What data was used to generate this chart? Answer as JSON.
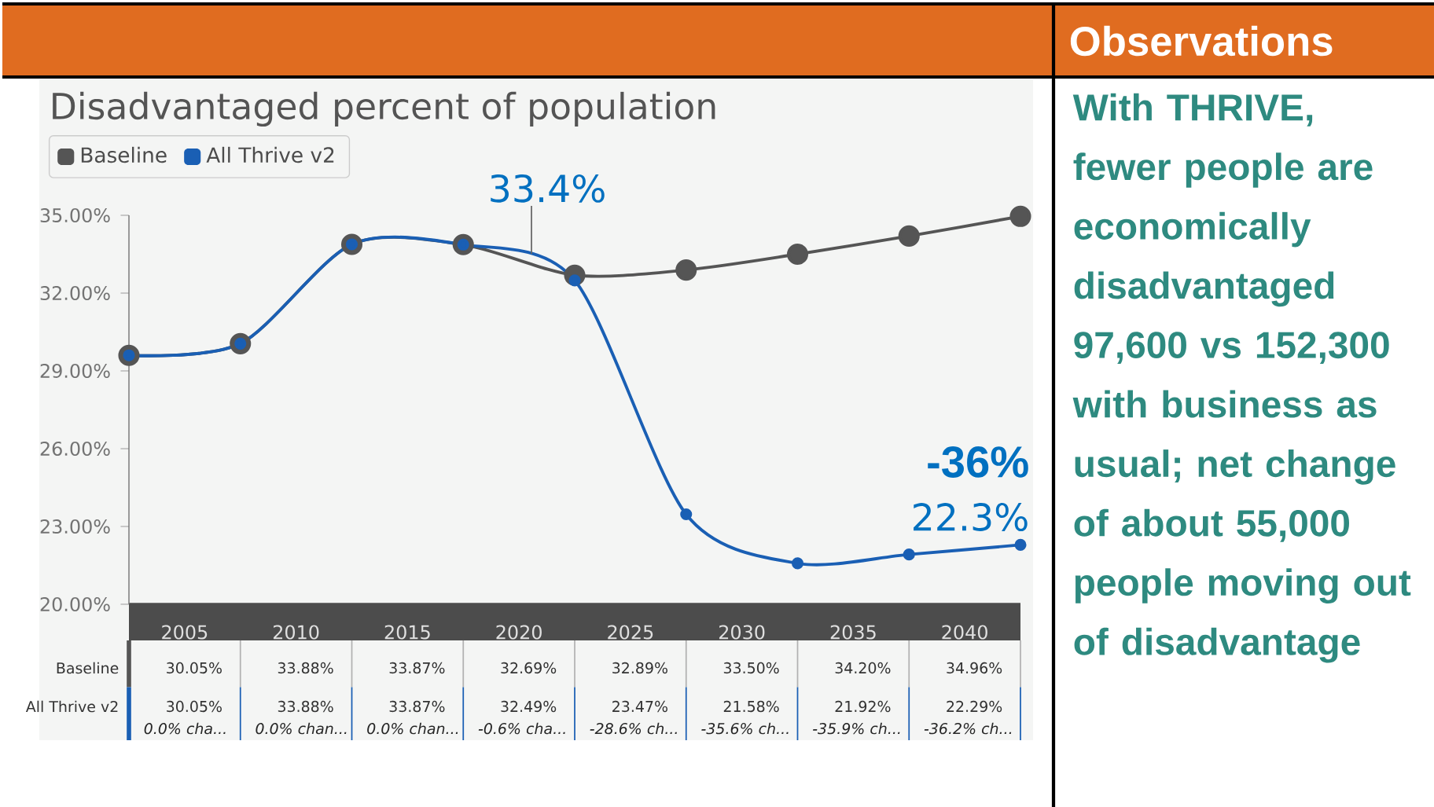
{
  "chart_data": {
    "type": "line",
    "title": "Disadvantaged percent of population",
    "x": [
      2002.5,
      2007.5,
      2012.5,
      2017.5,
      2022.5,
      2027.5,
      2032.5,
      2037.5,
      2042.5
    ],
    "series": [
      {
        "name": "Baseline",
        "color": "#555555",
        "values": [
          29.6,
          30.05,
          33.88,
          33.87,
          32.69,
          32.89,
          33.5,
          34.2,
          34.96
        ]
      },
      {
        "name": "All Thrive v2",
        "color": "#1a5fb4",
        "values": [
          29.6,
          30.05,
          33.88,
          33.87,
          32.49,
          23.47,
          21.58,
          21.92,
          22.29
        ]
      }
    ],
    "xlim": [
      2002.5,
      2042.5
    ],
    "xticks": [
      2005,
      2010,
      2015,
      2020,
      2025,
      2030,
      2035,
      2040
    ],
    "ylim": [
      20,
      35
    ],
    "yticks": [
      {
        "value": 20,
        "label": "20.00%"
      },
      {
        "value": 23,
        "label": "23.00%"
      },
      {
        "value": 26,
        "label": "26.00%"
      },
      {
        "value": 29,
        "label": "29.00%"
      },
      {
        "value": 32,
        "label": "32.00%"
      },
      {
        "value": 35,
        "label": "35.00%"
      }
    ],
    "marker": "circle",
    "legend": "top left",
    "grid": false,
    "annotations": [
      "33.4%",
      "-36%",
      "22.3%",
      "0.0% cha...",
      "0.0% chan...",
      "0.0% chan...",
      "-0.6% cha...",
      "-28.6% ch...",
      "-35.6% ch...",
      "-35.9% ch...",
      "-36.2% ch...",
      "Observations",
      "With THRIVE, fewer people are economically disadvantaged 97,600 vs 152,300 with business as usual; net change of about 55,000 people moving out of disadvantage",
      "30.05%",
      "33.88%",
      "33.87%",
      "32.69%",
      "32.89%",
      "33.50%",
      "34.20%",
      "34.96%",
      "30.05%",
      "33.88%",
      "33.87%",
      "32.49%",
      "23.47%",
      "21.58%",
      "21.92%",
      "22.29%"
    ]
  }
}
